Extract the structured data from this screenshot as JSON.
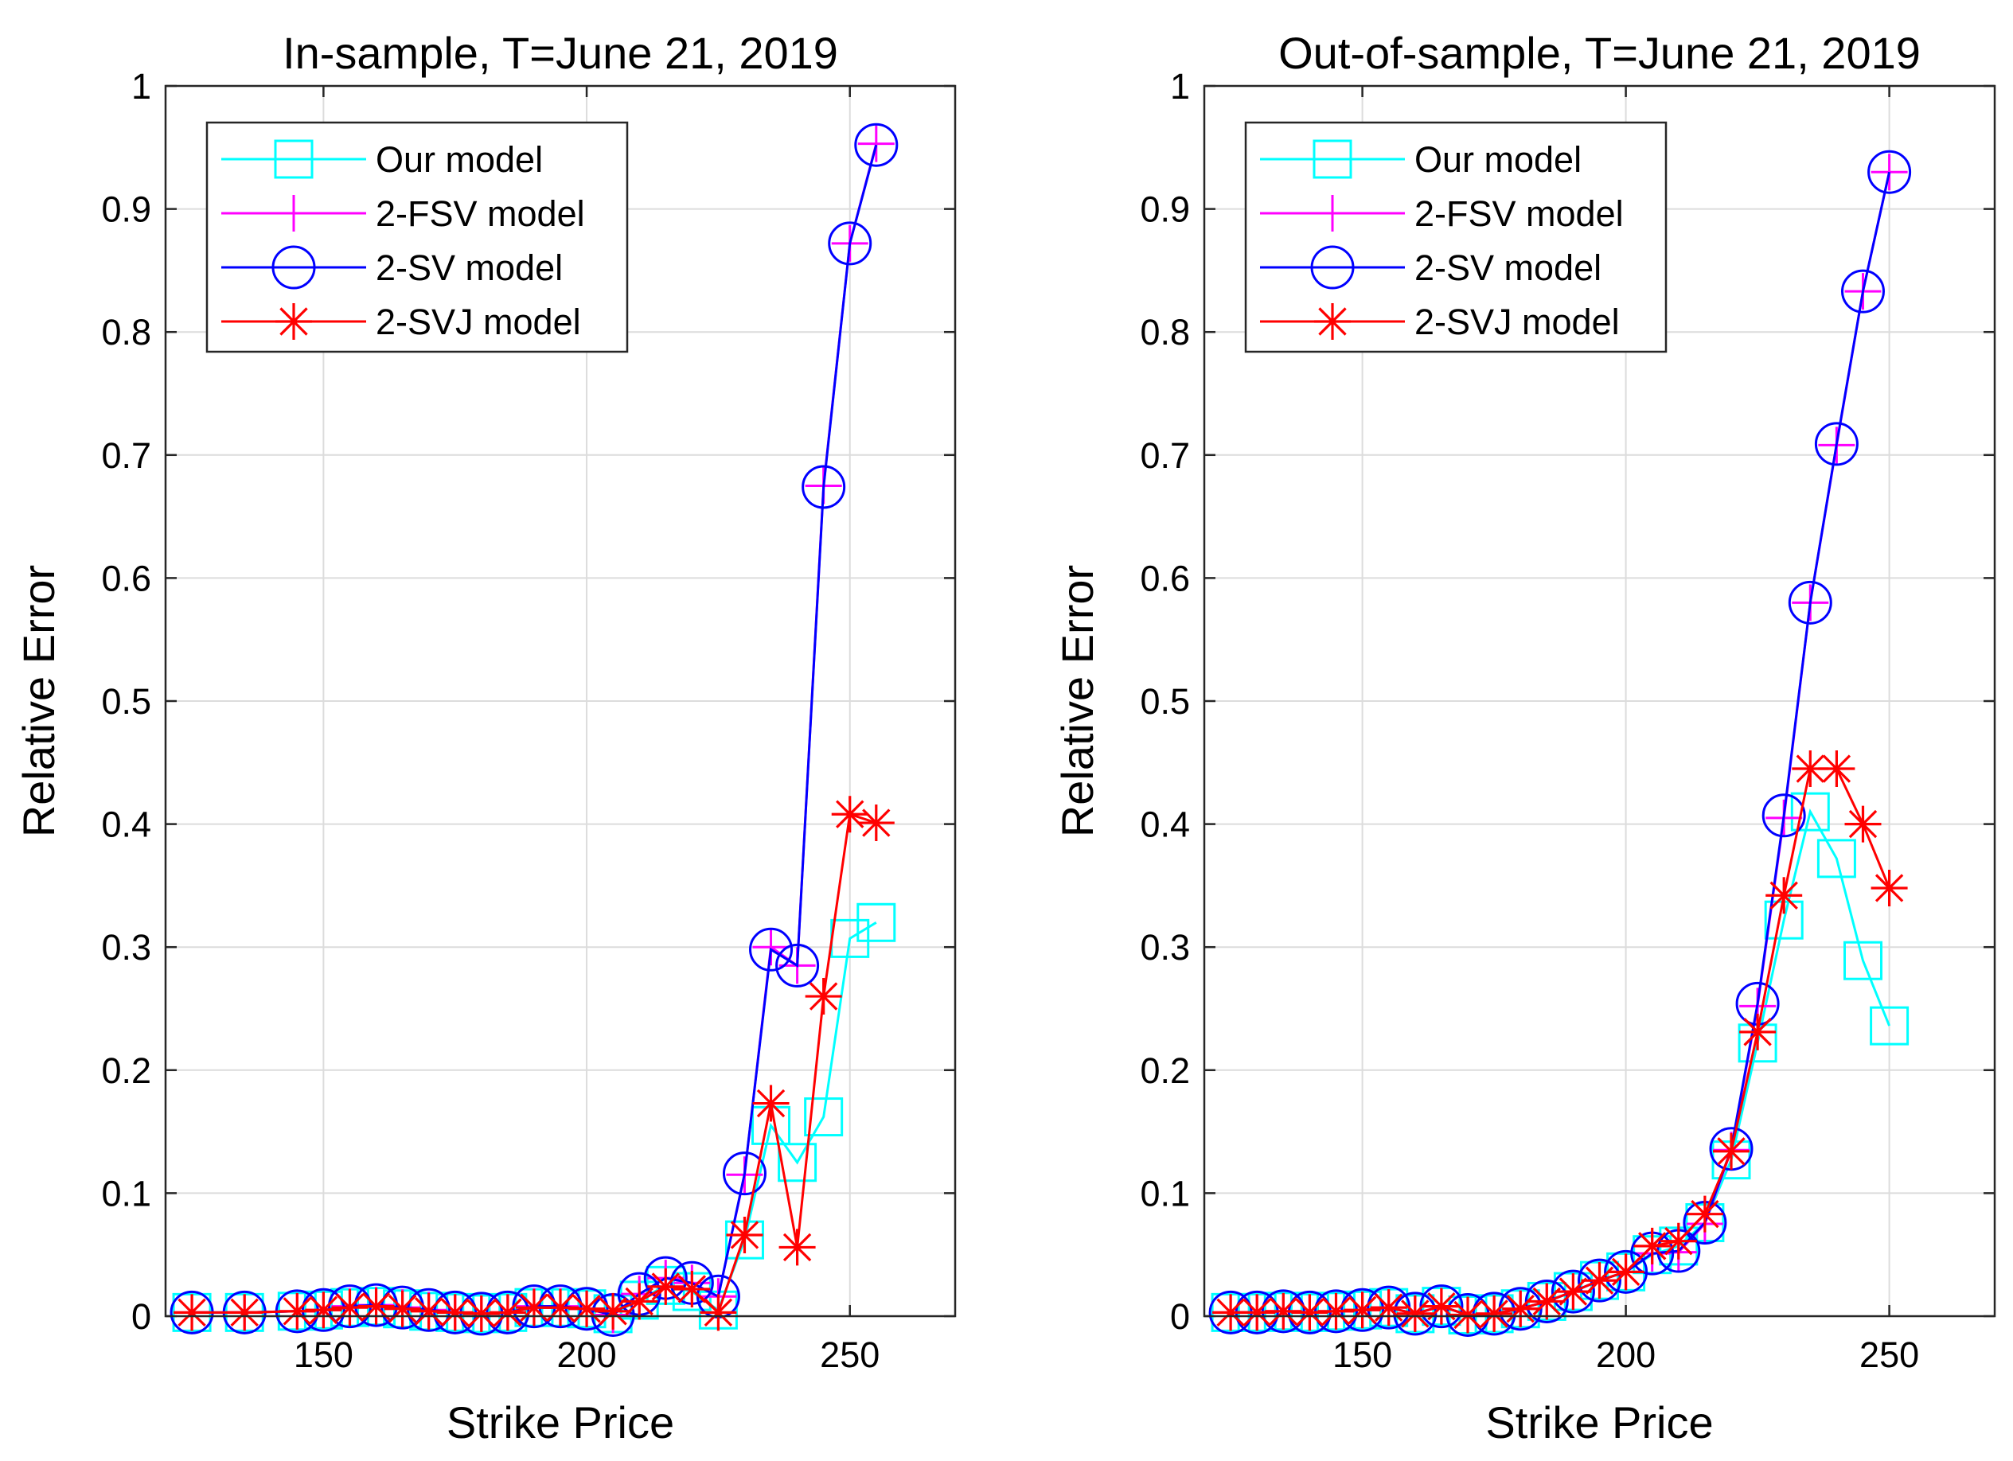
{
  "chart_data": [
    {
      "type": "line",
      "title": "In-sample, T=June 21, 2019",
      "xlabel": "Strike Price",
      "ylabel": "Relative Error",
      "xlim": [
        120,
        270
      ],
      "ylim": [
        0,
        1
      ],
      "xticks": [
        "150",
        "200",
        "250"
      ],
      "yticks": [
        "0",
        "0.1",
        "0.2",
        "0.3",
        "0.4",
        "0.5",
        "0.6",
        "0.7",
        "0.8",
        "0.9",
        "1"
      ],
      "grid": true,
      "legend_position": "top-left",
      "x": [
        125,
        135,
        145,
        150,
        155,
        160,
        165,
        170,
        175,
        180,
        185,
        190,
        195,
        200,
        205,
        210,
        215,
        220,
        225,
        230,
        235,
        240,
        245,
        250,
        255
      ],
      "series": [
        {
          "name": "Our model",
          "color": "#00ffff",
          "marker": "square",
          "values": [
            0.003,
            0.003,
            0.004,
            0.005,
            0.007,
            0.008,
            0.006,
            0.004,
            0.003,
            0.002,
            0.003,
            0.007,
            0.007,
            0.006,
            0.002,
            0.013,
            0.025,
            0.02,
            0.005,
            0.062,
            0.155,
            0.125,
            0.162,
            0.307,
            0.32
          ]
        },
        {
          "name": "2-FSV model",
          "color": "#ff00ff",
          "marker": "plus",
          "values": [
            0.003,
            0.003,
            0.004,
            0.005,
            0.008,
            0.009,
            0.007,
            0.005,
            0.003,
            0.002,
            0.003,
            0.008,
            0.008,
            0.006,
            0.001,
            0.018,
            0.031,
            0.027,
            0.016,
            0.115,
            0.3,
            0.285,
            0.675,
            0.872,
            0.953
          ]
        },
        {
          "name": "2-SV model",
          "color": "#0000ff",
          "marker": "circle",
          "values": [
            0.003,
            0.003,
            0.004,
            0.005,
            0.008,
            0.009,
            0.007,
            0.005,
            0.003,
            0.002,
            0.003,
            0.008,
            0.008,
            0.006,
            0.001,
            0.018,
            0.031,
            0.027,
            0.016,
            0.116,
            0.298,
            0.285,
            0.674,
            0.872,
            0.952
          ]
        },
        {
          "name": "2-SVJ model",
          "color": "#ff0000",
          "marker": "star",
          "values": [
            0.003,
            0.003,
            0.004,
            0.005,
            0.007,
            0.008,
            0.006,
            0.004,
            0.003,
            0.002,
            0.003,
            0.007,
            0.007,
            0.006,
            0.004,
            0.012,
            0.024,
            0.022,
            0.003,
            0.066,
            0.173,
            0.056,
            0.26,
            0.408,
            0.401
          ]
        }
      ]
    },
    {
      "type": "line",
      "title": "Out-of-sample, T=June 21, 2019",
      "xlabel": "Strike Price",
      "ylabel": "Relative Error",
      "xlim": [
        120,
        270
      ],
      "ylim": [
        0,
        1
      ],
      "xticks": [
        "150",
        "200",
        "250"
      ],
      "yticks": [
        "0",
        "0.1",
        "0.2",
        "0.3",
        "0.4",
        "0.5",
        "0.6",
        "0.7",
        "0.8",
        "0.9",
        "1"
      ],
      "grid": true,
      "legend_position": "top-left",
      "x": [
        125,
        130,
        135,
        140,
        145,
        150,
        155,
        160,
        165,
        170,
        175,
        180,
        185,
        190,
        195,
        200,
        205,
        210,
        215,
        220,
        225,
        230,
        235,
        240,
        245,
        250
      ],
      "series": [
        {
          "name": "Our model",
          "color": "#00ffff",
          "marker": "square",
          "values": [
            0.003,
            0.003,
            0.004,
            0.003,
            0.004,
            0.005,
            0.007,
            0.002,
            0.008,
            0.001,
            0.002,
            0.006,
            0.012,
            0.02,
            0.029,
            0.036,
            0.05,
            0.057,
            0.076,
            0.127,
            0.222,
            0.322,
            0.41,
            0.372,
            0.289,
            0.236
          ]
        },
        {
          "name": "2-FSV model",
          "color": "#ff00ff",
          "marker": "plus",
          "values": [
            0.003,
            0.003,
            0.004,
            0.003,
            0.004,
            0.005,
            0.007,
            0.002,
            0.008,
            0.001,
            0.002,
            0.006,
            0.012,
            0.02,
            0.029,
            0.036,
            0.051,
            0.052,
            0.075,
            0.135,
            0.252,
            0.405,
            0.58,
            0.708,
            0.833,
            0.93
          ]
        },
        {
          "name": "2-SV model",
          "color": "#0000ff",
          "marker": "circle",
          "values": [
            0.003,
            0.003,
            0.004,
            0.003,
            0.004,
            0.005,
            0.007,
            0.002,
            0.008,
            0.001,
            0.002,
            0.006,
            0.012,
            0.02,
            0.029,
            0.036,
            0.051,
            0.053,
            0.076,
            0.136,
            0.254,
            0.407,
            0.58,
            0.709,
            0.833,
            0.93
          ]
        },
        {
          "name": "2-SVJ model",
          "color": "#ff0000",
          "marker": "star",
          "values": [
            0.003,
            0.003,
            0.004,
            0.003,
            0.004,
            0.005,
            0.007,
            0.002,
            0.008,
            0.001,
            0.002,
            0.006,
            0.012,
            0.02,
            0.029,
            0.036,
            0.057,
            0.061,
            0.083,
            0.134,
            0.231,
            0.342,
            0.445,
            0.445,
            0.4,
            0.348
          ]
        }
      ]
    }
  ]
}
